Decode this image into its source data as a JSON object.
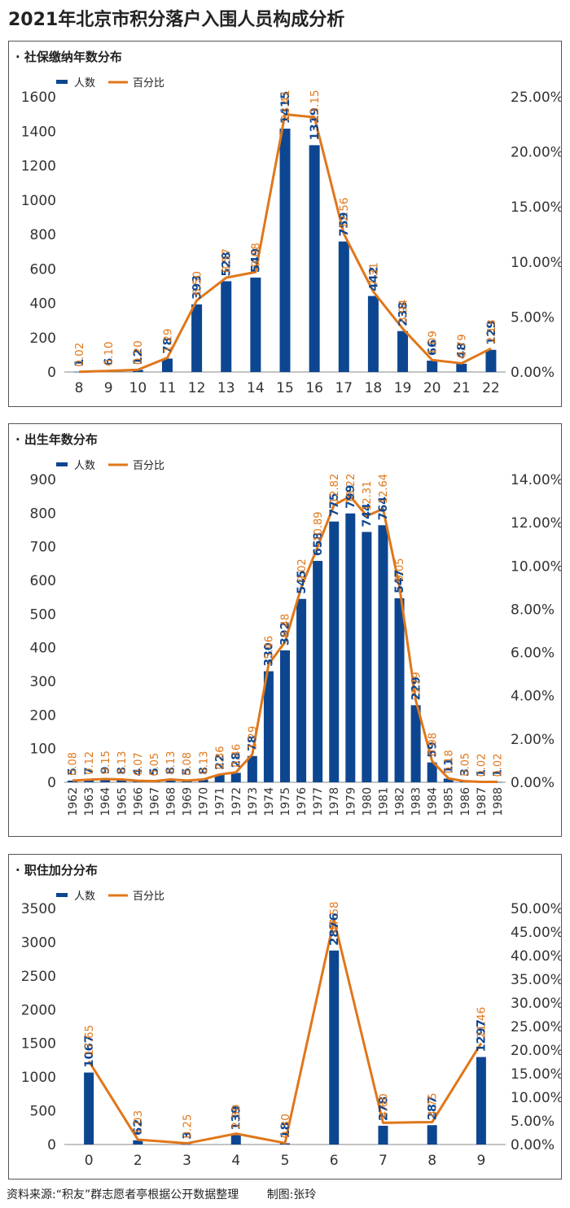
{
  "page": {
    "title": "2021年北京市积分落户入围人员构成分析",
    "source": "资料来源:“积友”群志愿者亭根据公开数据整理",
    "credit": "制图:张玲"
  },
  "colors": {
    "bar": "#0d4690",
    "line": "#e0771a",
    "text": "#333333"
  },
  "chart_data": [
    {
      "type": "bar",
      "panel_title": "· 社保缴纳年数分布",
      "legend": [
        "人数",
        "百分比"
      ],
      "categories": [
        "8",
        "9",
        "10",
        "11",
        "12",
        "13",
        "14",
        "15",
        "16",
        "17",
        "18",
        "19",
        "20",
        "21",
        "22"
      ],
      "series": [
        {
          "name": "人数",
          "axis": "left",
          "values": [
            1,
            6,
            12,
            78,
            393,
            528,
            549,
            1415,
            1319,
            759,
            442,
            238,
            66,
            48,
            129
          ],
          "labels": [
            "1",
            "6",
            "12",
            "78",
            "393",
            "528",
            "549",
            "1415",
            "1319",
            "759",
            "442",
            "238",
            "66",
            "48",
            "129"
          ]
        },
        {
          "name": "百分比",
          "type": "line",
          "axis": "right",
          "values": [
            0.02,
            0.1,
            0.2,
            1.29,
            6.5,
            8.57,
            9.08,
            23.41,
            23.15,
            12.56,
            7.31,
            3.94,
            1.09,
            0.79,
            2.13
          ],
          "labels": [
            "0.02",
            "0.10",
            "0.20",
            "1.29",
            "6.50",
            "8.57",
            "9.08",
            "23.41",
            "23.15",
            "12.56",
            "7.31",
            "3.94",
            "1.09",
            "0.79",
            "2.13"
          ]
        }
      ],
      "ylim": [
        0,
        1600
      ],
      "yticks": [
        "0",
        "200",
        "400",
        "600",
        "800",
        "1000",
        "1200",
        "1400",
        "1600"
      ],
      "y2lim": [
        0,
        25
      ],
      "y2ticks": [
        "0.00%",
        "5.00%",
        "10.00%",
        "15.00%",
        "20.00%",
        "25.00%"
      ]
    },
    {
      "type": "bar",
      "panel_title": "· 出生年数分布",
      "legend": [
        "人数",
        "百分比"
      ],
      "categories": [
        "1962",
        "1963",
        "1964",
        "1965",
        "1966",
        "1967",
        "1968",
        "1969",
        "1970",
        "1971",
        "1972",
        "1973",
        "1974",
        "1975",
        "1976",
        "1977",
        "1978",
        "1979",
        "1980",
        "1981",
        "1982",
        "1983",
        "1984",
        "1985",
        "1986",
        "1987",
        "1988"
      ],
      "series": [
        {
          "name": "人数",
          "axis": "left",
          "values": [
            5,
            7,
            9,
            8,
            4,
            5,
            8,
            5,
            8,
            22,
            28,
            78,
            330,
            392,
            545,
            658,
            775,
            799,
            744,
            764,
            547,
            229,
            59,
            11,
            3,
            1,
            1
          ],
          "labels": [
            "5",
            "7",
            "9",
            "8",
            "4",
            "5",
            "8",
            "5",
            "8",
            "22",
            "28",
            "78",
            "330",
            "392",
            "545",
            "658",
            "775",
            "799",
            "744",
            "764",
            "547",
            "229",
            "59",
            "11",
            "3",
            "1",
            "1"
          ]
        },
        {
          "name": "百分比",
          "type": "line",
          "axis": "right",
          "values": [
            0.08,
            0.12,
            0.15,
            0.13,
            0.07,
            0.05,
            0.13,
            0.08,
            0.13,
            0.36,
            0.46,
            1.29,
            5.46,
            6.48,
            9.02,
            10.89,
            12.82,
            13.22,
            12.31,
            12.64,
            9.05,
            3.79,
            0.98,
            0.18,
            0.05,
            0.02,
            0.02
          ],
          "labels": [
            "0.08",
            "0.12",
            "0.15",
            "0.13",
            "0.07",
            "0.05",
            "0.13",
            "0.08",
            "0.13",
            "0.36",
            "0.46",
            "1.29",
            "5.46",
            "6.48",
            "9.02",
            "10.89",
            "12.82",
            "13.22",
            "12.31",
            "12.64",
            "9.05",
            "3.79",
            "0.98",
            "0.18",
            "0.05",
            "0.02",
            "0.02"
          ]
        }
      ],
      "ylim": [
        0,
        900
      ],
      "yticks": [
        "0",
        "100",
        "200",
        "300",
        "400",
        "500",
        "600",
        "700",
        "800",
        "900"
      ],
      "y2lim": [
        0,
        14
      ],
      "y2ticks": [
        "0.00%",
        "2.00%",
        "4.00%",
        "6.00%",
        "8.00%",
        "10.00%",
        "12.00%",
        "14.00%"
      ]
    },
    {
      "type": "bar",
      "panel_title": "· 职住加分分布",
      "legend": [
        "人数",
        "百分比"
      ],
      "categories": [
        "0",
        "2",
        "3",
        "4",
        "5",
        "6",
        "7",
        "8",
        "9"
      ],
      "series": [
        {
          "name": "人数",
          "axis": "left",
          "values": [
            1067,
            62,
            3,
            139,
            18,
            2876,
            278,
            287,
            1297
          ],
          "labels": [
            "1067",
            "62",
            "3",
            "139",
            "18",
            "2876",
            "278",
            "287",
            "1297"
          ]
        },
        {
          "name": "百分比",
          "type": "line",
          "axis": "right",
          "values": [
            17.65,
            1.03,
            0.25,
            2.3,
            0.3,
            47.58,
            4.6,
            4.75,
            21.46
          ],
          "labels": [
            "17.65",
            "1.03",
            "0.25",
            "2.30",
            "0.30",
            "47.58",
            "4.60",
            "4.75",
            "21.46"
          ]
        }
      ],
      "ylim": [
        0,
        3500
      ],
      "yticks": [
        "0",
        "500",
        "1000",
        "1500",
        "2000",
        "2500",
        "3000",
        "3500"
      ],
      "y2lim": [
        0,
        50
      ],
      "y2ticks": [
        "0.00%",
        "5.00%",
        "10.00%",
        "15.00%",
        "20.00%",
        "25.00%",
        "30.00%",
        "35.00%",
        "40.00%",
        "45.00%",
        "50.00%"
      ]
    }
  ]
}
